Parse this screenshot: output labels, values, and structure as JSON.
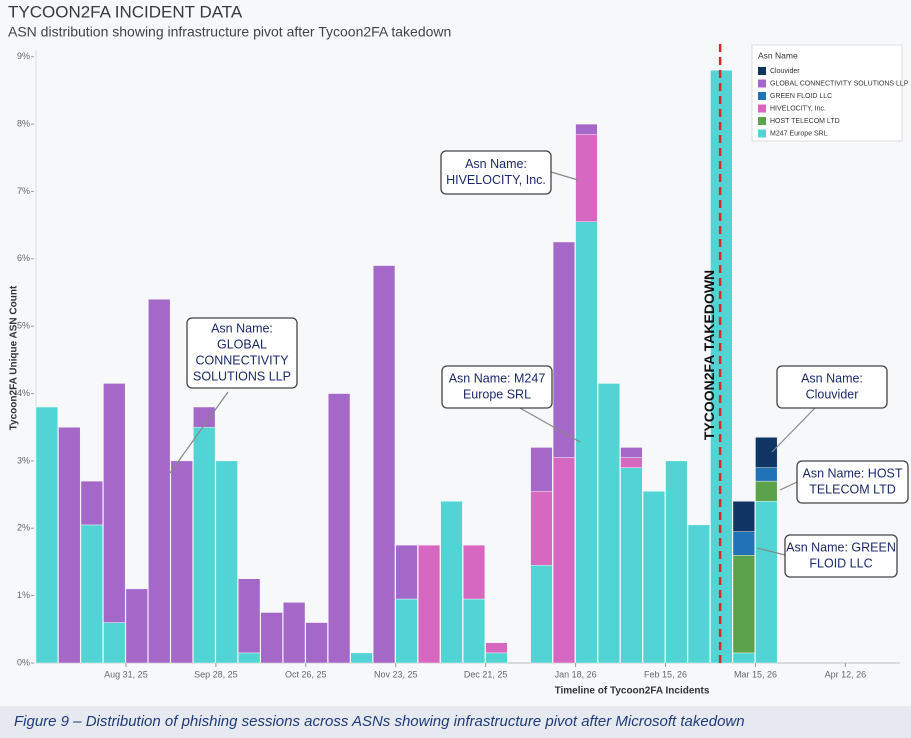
{
  "chart_data": {
    "type": "stacked_bar",
    "title": "TYCOON2FA INCIDENT DATA",
    "subtitle": "ASN distribution showing infrastructure pivot after Tycoon2FA takedown",
    "xlabel": "Timeline of Tycoon2FA Incidents",
    "ylabel": "Tycoon2FA Unique ASN Count",
    "caption": "Figure 9 – Distribution of phishing sessions across ASNs showing infrastructure pivot after Microsoft takedown",
    "legend_title": "Asn Name",
    "legend": "upper right",
    "grid": false,
    "x": [
      "2025-08-03",
      "2025-08-10",
      "2025-08-17",
      "2025-08-24",
      "2025-08-31",
      "2025-09-07",
      "2025-09-14",
      "2025-09-21",
      "2025-09-28",
      "2025-10-05",
      "2025-10-12",
      "2025-10-19",
      "2025-10-26",
      "2025-11-02",
      "2025-11-09",
      "2025-11-16",
      "2025-11-23",
      "2025-11-30",
      "2025-12-07",
      "2025-12-14",
      "2025-12-21",
      "2026-01-04",
      "2026-01-11",
      "2026-01-18",
      "2026-01-25",
      "2026-02-01",
      "2026-02-08",
      "2026-02-15",
      "2026-02-22",
      "2026-03-01",
      "2026-03-08",
      "2026-03-15"
    ],
    "series": [
      {
        "name": "Clouvider",
        "color": "#0e3563",
        "values": [
          null,
          null,
          null,
          null,
          null,
          null,
          null,
          null,
          null,
          null,
          null,
          null,
          null,
          null,
          null,
          null,
          null,
          null,
          null,
          null,
          null,
          null,
          null,
          null,
          null,
          null,
          null,
          null,
          null,
          null,
          0.45,
          0.45
        ]
      },
      {
        "name": "GLOBAL CONNECTIVITY SOLUTIONS LLP",
        "color": "#a368c8",
        "values": [
          null,
          3.5,
          0.65,
          3.55,
          1.1,
          5.4,
          3.0,
          0.3,
          null,
          1.1,
          0.75,
          0.9,
          0.6,
          4.0,
          null,
          5.9,
          0.8,
          null,
          null,
          null,
          null,
          0.65,
          3.2,
          0.15,
          null,
          0.15,
          null,
          null,
          null,
          null,
          null,
          null
        ]
      },
      {
        "name": "GREEN FLOID LLC",
        "color": "#2272b8",
        "values": [
          null,
          null,
          null,
          null,
          null,
          null,
          null,
          null,
          null,
          null,
          null,
          null,
          null,
          null,
          null,
          null,
          null,
          null,
          null,
          null,
          null,
          null,
          null,
          null,
          null,
          null,
          null,
          null,
          null,
          null,
          0.35,
          0.2
        ]
      },
      {
        "name": "HIVELOCITY, Inc.",
        "color": "#d668c2",
        "values": [
          null,
          null,
          null,
          null,
          null,
          null,
          null,
          null,
          null,
          null,
          null,
          null,
          null,
          null,
          null,
          null,
          null,
          1.75,
          null,
          0.8,
          0.15,
          1.1,
          3.05,
          1.3,
          null,
          0.15,
          null,
          null,
          null,
          null,
          null,
          null
        ]
      },
      {
        "name": "HOST TELECOM LTD",
        "color": "#5ba24b",
        "values": [
          null,
          null,
          null,
          null,
          null,
          null,
          null,
          null,
          null,
          null,
          null,
          null,
          null,
          null,
          null,
          null,
          null,
          null,
          null,
          null,
          null,
          null,
          null,
          null,
          null,
          null,
          null,
          null,
          null,
          null,
          1.45,
          0.3
        ]
      },
      {
        "name": "M247 Europe SRL",
        "color": "#52d4d4",
        "values": [
          3.8,
          null,
          2.05,
          0.6,
          null,
          null,
          null,
          3.5,
          3.0,
          0.15,
          null,
          null,
          null,
          null,
          0.15,
          null,
          0.95,
          null,
          2.4,
          0.95,
          0.15,
          1.45,
          null,
          6.55,
          4.15,
          2.9,
          2.55,
          3.0,
          2.05,
          8.8,
          0.15,
          2.4
        ]
      }
    ],
    "xlim": [
      "2025-08-03",
      "2026-04-29"
    ],
    "xticks": [
      {
        "value": "2025-08-31",
        "label": "Aug 31, 25"
      },
      {
        "value": "2025-09-28",
        "label": "Sep 28, 25"
      },
      {
        "value": "2025-10-26",
        "label": "Oct 26, 25"
      },
      {
        "value": "2025-11-23",
        "label": "Nov 23, 25"
      },
      {
        "value": "2025-12-21",
        "label": "Dec 21, 25"
      },
      {
        "value": "2026-01-18",
        "label": "Jan 18, 26"
      },
      {
        "value": "2026-02-15",
        "label": "Feb 15, 26"
      },
      {
        "value": "2026-03-15",
        "label": "Mar 15, 26"
      },
      {
        "value": "2026-04-12",
        "label": "Apr 12, 26"
      }
    ],
    "ylim": [
      0,
      9.1
    ],
    "yticks": [
      {
        "value": 0,
        "label": "0%"
      },
      {
        "value": 1,
        "label": "1%"
      },
      {
        "value": 2,
        "label": "2%"
      },
      {
        "value": 3,
        "label": "3%"
      },
      {
        "value": 4,
        "label": "4%"
      },
      {
        "value": 5,
        "label": "5%"
      },
      {
        "value": 6,
        "label": "6%"
      },
      {
        "value": 7,
        "label": "7%"
      },
      {
        "value": 8,
        "label": "8%"
      },
      {
        "value": 9,
        "label": "9%"
      }
    ],
    "takedown": {
      "x": "2026-03-04",
      "label": "TYCOON2FA TAKEDOWN",
      "color": "#d62828"
    },
    "callouts": [
      {
        "lines": [
          "Asn Name:",
          "GLOBAL",
          "CONNECTIVITY",
          "SOLUTIONS LLP"
        ]
      },
      {
        "lines": [
          "Asn Name:",
          "HIVELOCITY, Inc."
        ]
      },
      {
        "lines": [
          "Asn Name: M247",
          "Europe SRL"
        ]
      },
      {
        "lines": [
          "Asn Name:",
          "Clouvider"
        ]
      },
      {
        "lines": [
          "Asn Name: HOST",
          "TELECOM LTD"
        ]
      },
      {
        "lines": [
          "Asn Name: GREEN",
          "FLOID LLC"
        ]
      }
    ]
  }
}
